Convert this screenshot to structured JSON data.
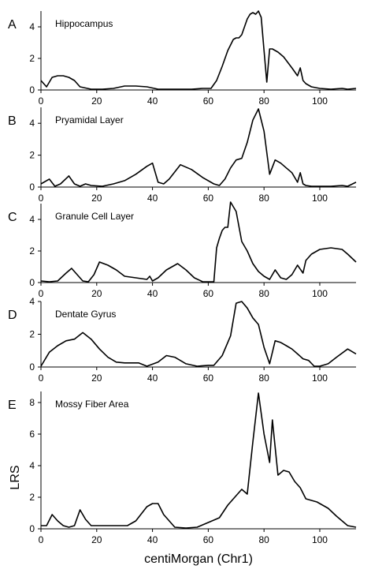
{
  "xlabel": "centiMorgan (Chr1)",
  "ylabel": "LRS",
  "chart_data": [
    {
      "type": "line",
      "letter": "A",
      "title": "Hippocampus",
      "ylim": [
        0,
        5
      ],
      "xlim": [
        0,
        113
      ],
      "yticks": [
        0,
        2,
        4
      ],
      "xticks": [
        0,
        20,
        40,
        60,
        80,
        100
      ],
      "x": [
        0,
        2,
        4,
        6,
        8,
        10,
        12,
        14,
        18,
        22,
        26,
        30,
        34,
        38,
        42,
        46,
        50,
        54,
        58,
        61,
        63,
        65,
        67,
        69,
        70,
        71,
        72,
        74,
        75,
        76,
        77,
        78,
        79,
        80,
        81,
        82,
        83,
        85,
        87,
        90,
        92,
        93,
        94,
        95,
        97,
        100,
        104,
        108,
        110,
        113
      ],
      "y": [
        0.6,
        0.2,
        0.8,
        0.9,
        0.9,
        0.8,
        0.6,
        0.2,
        0.05,
        0.05,
        0.1,
        0.25,
        0.25,
        0.2,
        0.05,
        0.05,
        0.05,
        0.05,
        0.1,
        0.1,
        0.6,
        1.5,
        2.5,
        3.2,
        3.3,
        3.3,
        3.5,
        4.5,
        4.8,
        4.9,
        4.8,
        5.0,
        4.6,
        2.5,
        0.5,
        2.6,
        2.6,
        2.4,
        2.1,
        1.4,
        0.9,
        1.4,
        0.6,
        0.4,
        0.2,
        0.1,
        0.05,
        0.1,
        0.05,
        0.1
      ]
    },
    {
      "type": "line",
      "letter": "B",
      "title": "Pryamidal Layer",
      "ylim": [
        0,
        5
      ],
      "xlim": [
        0,
        113
      ],
      "yticks": [
        0,
        2,
        4
      ],
      "xticks": [
        0,
        20,
        40,
        60,
        80,
        100
      ],
      "x": [
        0,
        3,
        5,
        7,
        10,
        12,
        14,
        16,
        18,
        22,
        26,
        30,
        34,
        38,
        40,
        42,
        44,
        46,
        50,
        54,
        58,
        62,
        64,
        66,
        68,
        70,
        72,
        74,
        76,
        78,
        80,
        82,
        84,
        86,
        88,
        90,
        92,
        93,
        94,
        95,
        97,
        100,
        104,
        108,
        110,
        113
      ],
      "y": [
        0.2,
        0.5,
        0.05,
        0.2,
        0.7,
        0.2,
        0.05,
        0.2,
        0.1,
        0.05,
        0.2,
        0.4,
        0.8,
        1.3,
        1.5,
        0.3,
        0.2,
        0.5,
        1.4,
        1.1,
        0.6,
        0.2,
        0.1,
        0.5,
        1.2,
        1.7,
        1.8,
        2.8,
        4.2,
        4.9,
        3.5,
        0.8,
        1.7,
        1.5,
        1.2,
        0.9,
        0.3,
        0.9,
        0.2,
        0.1,
        0.05,
        0.05,
        0.05,
        0.1,
        0.05,
        0.3
      ]
    },
    {
      "type": "line",
      "letter": "C",
      "title": "Granule Cell Layer",
      "ylim": [
        0,
        5
      ],
      "xlim": [
        0,
        113
      ],
      "yticks": [
        0,
        2,
        4
      ],
      "xticks": [
        0,
        20,
        40,
        60,
        80,
        100
      ],
      "x": [
        0,
        3,
        6,
        9,
        11,
        13,
        15,
        17,
        19,
        21,
        24,
        27,
        30,
        34,
        38,
        39,
        40,
        42,
        45,
        49,
        52,
        55,
        58,
        60,
        62,
        63,
        64,
        65,
        66,
        67,
        68,
        70,
        72,
        74,
        76,
        78,
        80,
        82,
        84,
        86,
        88,
        90,
        92,
        94,
        95,
        97,
        100,
        104,
        108,
        110,
        113
      ],
      "y": [
        0.1,
        0.05,
        0.1,
        0.6,
        0.9,
        0.5,
        0.1,
        0.05,
        0.5,
        1.3,
        1.1,
        0.8,
        0.4,
        0.3,
        0.2,
        0.4,
        0.1,
        0.3,
        0.8,
        1.2,
        0.8,
        0.3,
        0.05,
        0.05,
        0.05,
        2.2,
        2.8,
        3.3,
        3.5,
        3.5,
        5.1,
        4.5,
        2.6,
        2.0,
        1.2,
        0.7,
        0.4,
        0.2,
        0.8,
        0.3,
        0.2,
        0.5,
        1.1,
        0.6,
        1.4,
        1.8,
        2.1,
        2.2,
        2.1,
        1.8,
        1.3
      ]
    },
    {
      "type": "line",
      "letter": "D",
      "title": "Dentate Gyrus",
      "ylim": [
        0,
        4
      ],
      "xlim": [
        0,
        113
      ],
      "yticks": [
        0,
        2,
        4
      ],
      "xticks": [
        0,
        20,
        40,
        60,
        80,
        100
      ],
      "x": [
        0,
        3,
        6,
        9,
        12,
        15,
        18,
        21,
        24,
        27,
        30,
        35,
        38,
        42,
        45,
        48,
        52,
        56,
        60,
        62,
        65,
        68,
        70,
        72,
        74,
        76,
        78,
        80,
        82,
        84,
        86,
        88,
        90,
        92,
        94,
        96,
        98,
        100,
        103,
        106,
        110,
        113
      ],
      "y": [
        0.05,
        0.9,
        1.3,
        1.6,
        1.7,
        2.1,
        1.7,
        1.1,
        0.6,
        0.3,
        0.25,
        0.25,
        0.05,
        0.3,
        0.7,
        0.6,
        0.2,
        0.05,
        0.1,
        0.1,
        0.7,
        1.9,
        3.9,
        4.0,
        3.6,
        3.0,
        2.6,
        1.2,
        0.2,
        1.6,
        1.5,
        1.3,
        1.1,
        0.8,
        0.5,
        0.4,
        0.05,
        0.05,
        0.2,
        0.6,
        1.1,
        0.8
      ]
    },
    {
      "type": "line",
      "letter": "E",
      "title": "Mossy Fiber Area",
      "ylim": [
        0,
        8.7
      ],
      "xlim": [
        0,
        113
      ],
      "yticks": [
        0,
        2,
        4,
        6,
        8
      ],
      "xticks": [
        0,
        20,
        40,
        60,
        80,
        100
      ],
      "x": [
        0,
        2,
        4,
        6,
        8,
        10,
        12,
        14,
        16,
        18,
        20,
        24,
        28,
        31,
        34,
        38,
        40,
        42,
        44,
        48,
        52,
        56,
        60,
        64,
        67,
        70,
        72,
        74,
        76,
        78,
        80,
        82,
        83,
        85,
        87,
        89,
        91,
        93,
        95,
        99,
        103,
        106,
        110,
        113
      ],
      "y": [
        0.2,
        0.2,
        0.9,
        0.5,
        0.2,
        0.1,
        0.2,
        1.2,
        0.6,
        0.2,
        0.2,
        0.2,
        0.2,
        0.2,
        0.5,
        1.4,
        1.6,
        1.6,
        0.9,
        0.1,
        0.05,
        0.1,
        0.4,
        0.7,
        1.5,
        2.1,
        2.5,
        2.2,
        5.5,
        8.6,
        6.0,
        4.2,
        6.9,
        3.4,
        3.7,
        3.6,
        3.0,
        2.6,
        1.9,
        1.7,
        1.3,
        0.8,
        0.2,
        0.1
      ]
    }
  ]
}
